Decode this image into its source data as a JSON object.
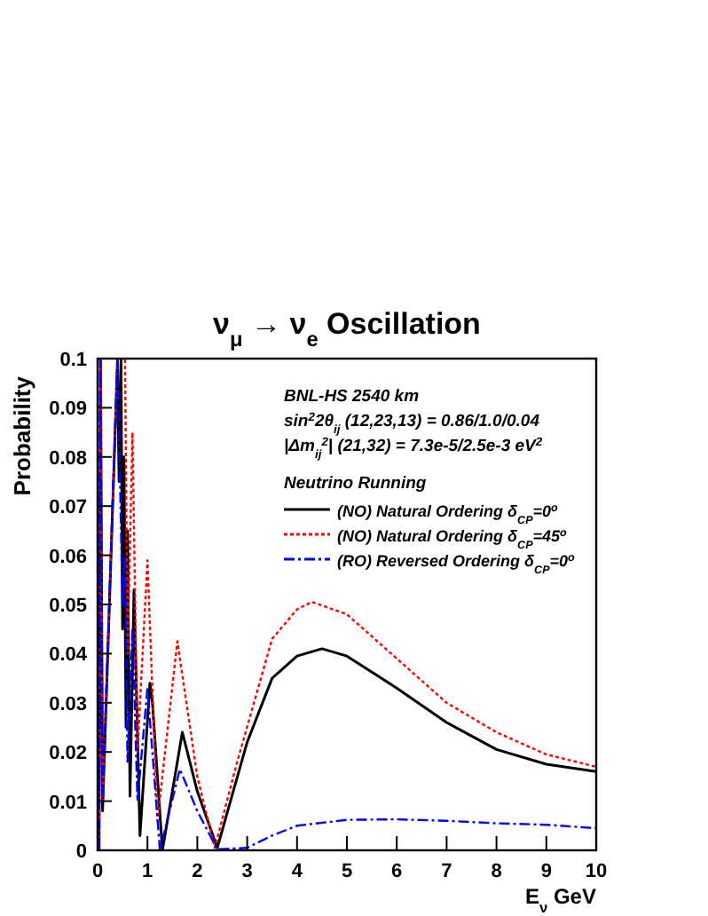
{
  "chart_data": {
    "type": "line",
    "title": "ν$_{μ}$ → ν$_{e}$ Oscillation",
    "xlabel": "E$_{ν}$ GeV",
    "ylabel": "Probability",
    "legend_title": "Neutrino Running",
    "legend": "top right",
    "grid": false,
    "marker": "none",
    "annotations": [
      "BNL-HS  2540 km",
      "sin$^{2}$2θ$_{ij}$ (12,23,13) = 0.86/1.0/0.04",
      "|Δm$_{ij}$$^{2}$| (21,32) = 7.3e-5/2.5e-3 eV$^{2}$"
    ],
    "xlim": [
      0,
      10
    ],
    "xticks": [
      0,
      1,
      2,
      3,
      4,
      5,
      6,
      7,
      8,
      9,
      10
    ],
    "ylim": [
      0,
      0.1
    ],
    "yticks": [
      0,
      0.01,
      0.02,
      0.03,
      0.04,
      0.05,
      0.06,
      0.07,
      0.08,
      0.09,
      0.1
    ],
    "series": [
      {
        "name": "(NO) Natural Ordering δ$_{CP}$=0$^{o}$",
        "color": "#000000",
        "line_style": "solid",
        "x": [
          0.03,
          0.06,
          0.1,
          0.4,
          0.43,
          0.47,
          0.5,
          0.53,
          0.57,
          0.6,
          0.65,
          0.73,
          0.85,
          1.05,
          1.1,
          1.3,
          1.7,
          2.0,
          2.4,
          3.0,
          3.5,
          4.0,
          4.5,
          5,
          6,
          7,
          8,
          9,
          10
        ],
        "values": [
          0,
          0.1,
          0.008,
          0.1,
          0.075,
          0.1,
          0.045,
          0.08,
          0.025,
          0.065,
          0.011,
          0.053,
          0.003,
          0.034,
          0.03,
          0,
          0.024,
          0.012,
          0.0005,
          0.022,
          0.035,
          0.0395,
          0.041,
          0.0395,
          0.033,
          0.026,
          0.0205,
          0.0175,
          0.016
        ]
      },
      {
        "name": "(NO) Natural Ordering δ$_{CP}$=45$^{o}$",
        "color": "#ff0000",
        "line_style": "dotted",
        "x": [
          0.03,
          0.06,
          0.1,
          0.4,
          0.55,
          0.6,
          0.7,
          0.8,
          1.0,
          1.2,
          1.6,
          2.0,
          2.35,
          2.8,
          3.5,
          4.0,
          4.3,
          5,
          6,
          7,
          8,
          9,
          10
        ],
        "values": [
          0,
          0.1,
          0.01,
          0.1,
          0.1,
          0.04,
          0.085,
          0.02,
          0.059,
          0.006,
          0.0425,
          0.015,
          0.0005,
          0.018,
          0.043,
          0.049,
          0.0505,
          0.048,
          0.039,
          0.03,
          0.024,
          0.0195,
          0.017
        ]
      },
      {
        "name": "(RO) Reversed Ordering δ$_{CP}$=0$^{o}$",
        "color": "#0000ff",
        "line_style": "dashed",
        "x": [
          0.03,
          0.05,
          0.1,
          0.4,
          0.5,
          0.55,
          0.6,
          0.7,
          0.8,
          1.0,
          1.25,
          1.65,
          2.0,
          2.4,
          3.0,
          3.5,
          4,
          5,
          6,
          7,
          8,
          9,
          10
        ],
        "values": [
          0,
          0.1,
          0.01,
          0.1,
          0.05,
          0.06,
          0.018,
          0.045,
          0.01,
          0.033,
          0,
          0.0165,
          0.008,
          0.0002,
          0.0005,
          0.003,
          0.005,
          0.0062,
          0.0063,
          0.006,
          0.0055,
          0.0052,
          0.0045
        ]
      }
    ]
  }
}
